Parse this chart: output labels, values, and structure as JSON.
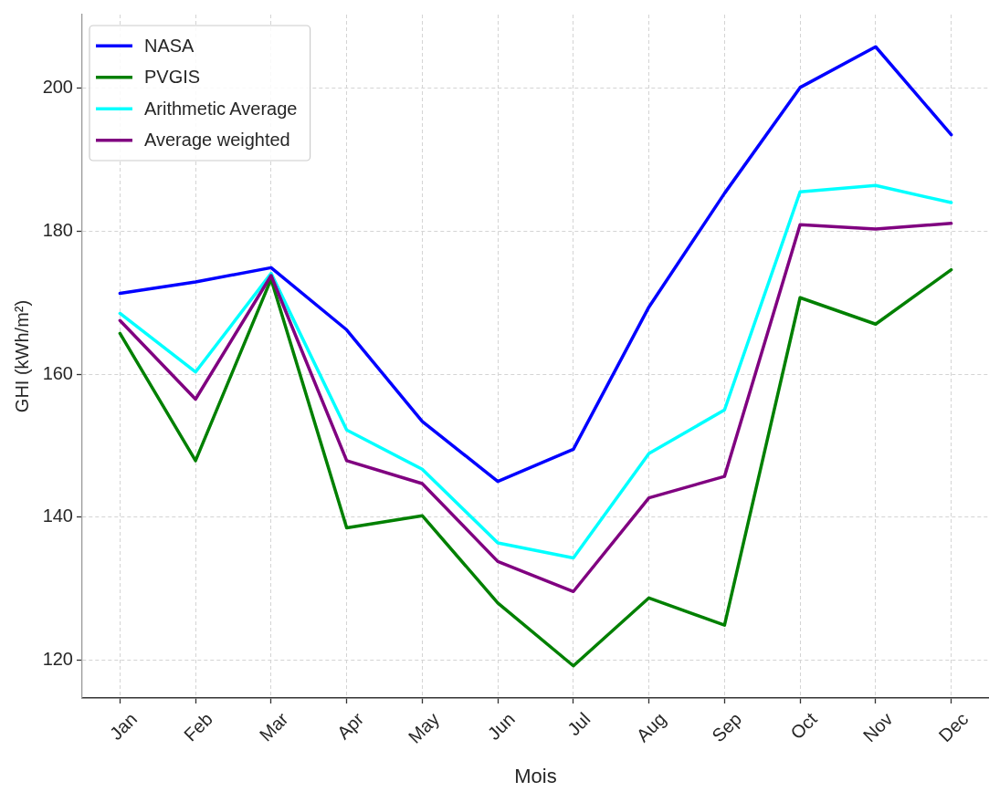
{
  "chart_data": {
    "type": "line",
    "xlabel": "Mois",
    "ylabel": "GHI (kWh/m²)",
    "categories": [
      "Jan",
      "Feb",
      "Mar",
      "Apr",
      "May",
      "Jun",
      "Jul",
      "Aug",
      "Sep",
      "Oct",
      "Nov",
      "Dec"
    ],
    "series": [
      {
        "name": "NASA",
        "color": "#0000ff",
        "values": [
          171.3,
          172.9,
          174.9,
          166.2,
          153.4,
          145.0,
          149.5,
          169.4,
          185.3,
          200.1,
          205.8,
          193.5
        ]
      },
      {
        "name": "PVGIS",
        "color": "#008000",
        "values": [
          165.7,
          147.9,
          173.3,
          138.5,
          140.2,
          128.0,
          119.2,
          128.7,
          124.9,
          170.7,
          167.0,
          174.6
        ]
      },
      {
        "name": "Arithmetic Average",
        "color": "#00ffff",
        "values": [
          168.5,
          160.3,
          174.1,
          152.2,
          146.7,
          136.4,
          134.3,
          148.9,
          155.0,
          185.5,
          186.4,
          184.0
        ]
      },
      {
        "name": "Average weighted",
        "color": "#800080",
        "values": [
          167.5,
          156.5,
          173.8,
          147.9,
          144.7,
          133.8,
          129.6,
          142.7,
          145.7,
          180.9,
          180.3,
          181.1
        ]
      }
    ],
    "ylim": [
      114.7,
      210.3
    ],
    "yticks": [
      120,
      140,
      160,
      180,
      200
    ],
    "grid": true,
    "legend": "top left",
    "marker": "none",
    "line_style": "solid"
  }
}
